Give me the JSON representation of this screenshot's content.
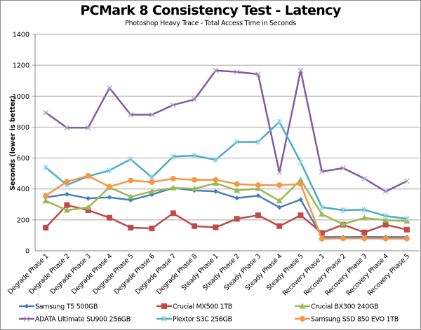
{
  "chart_data": {
    "type": "line",
    "title": "PCMark 8 Consistency Test - Latency",
    "subtitle": "Photoshop Heavy Trace - Total Access Time in Seconds",
    "xlabel": "",
    "ylabel": "Seconds (lower is better)",
    "ylim": [
      0,
      1400
    ],
    "yticks": [
      "0",
      "200",
      "400",
      "600",
      "800",
      "1000",
      "1200",
      "1400"
    ],
    "ytick_values": [
      0,
      200,
      400,
      600,
      800,
      1000,
      1200,
      1400
    ],
    "grid": true,
    "legend_position": "bottom",
    "categories": [
      "Degrade Phase 1",
      "Degrade Phase 2",
      "Degrade Phase 3",
      "Degrade Phase 4",
      "Degrade Phase 5",
      "Degrade Phase 6",
      "Degrade Phase 7",
      "Degrade Phase 8",
      "Steady Phase 1",
      "Steady Phase 2",
      "Steady Phase 3",
      "Steady Phase 4",
      "Steady Phase 5",
      "Recovery Phase 1",
      "Recovery Phase 2",
      "Recovery Phase 3",
      "Recovery Phase 4",
      "Recovery Phase 5"
    ],
    "series": [
      {
        "name": "Samsung T5 500GB",
        "color": "#4a7ebb",
        "marker": "diamond",
        "values": [
          346,
          366,
          339,
          346,
          328,
          364,
          407,
          391,
          384,
          341,
          357,
          281,
          331,
          89,
          89,
          90,
          89,
          89
        ]
      },
      {
        "name": "Crucial MX500 1TB",
        "color": "#be4b48",
        "marker": "square",
        "values": [
          150,
          296,
          263,
          214,
          150,
          145,
          243,
          160,
          152,
          207,
          230,
          160,
          230,
          116,
          169,
          119,
          169,
          137
        ]
      },
      {
        "name": "Crucial BX300 240GB",
        "color": "#98b954",
        "marker": "triangle",
        "values": [
          323,
          263,
          281,
          411,
          350,
          384,
          407,
          402,
          437,
          391,
          403,
          323,
          459,
          237,
          172,
          213,
          198,
          192
        ]
      },
      {
        "name": "ADATA Ultimate SU900 256GB",
        "color": "#7d5fa0",
        "marker": "x",
        "values": [
          894,
          796,
          796,
          1053,
          880,
          880,
          943,
          979,
          1166,
          1157,
          1142,
          508,
          1166,
          512,
          535,
          467,
          384,
          451
        ]
      },
      {
        "name": "Plextor S3C 256GB",
        "color": "#4bacc6",
        "marker": "star",
        "values": [
          539,
          426,
          482,
          520,
          592,
          475,
          610,
          616,
          588,
          704,
          704,
          834,
          573,
          282,
          263,
          266,
          225,
          207
        ]
      },
      {
        "name": "Samsung SSD 850 EVO 1TB",
        "color": "#f79646",
        "marker": "circle",
        "values": [
          357,
          447,
          485,
          414,
          455,
          444,
          467,
          459,
          459,
          432,
          425,
          425,
          432,
          78,
          80,
          80,
          79,
          79
        ]
      }
    ]
  }
}
